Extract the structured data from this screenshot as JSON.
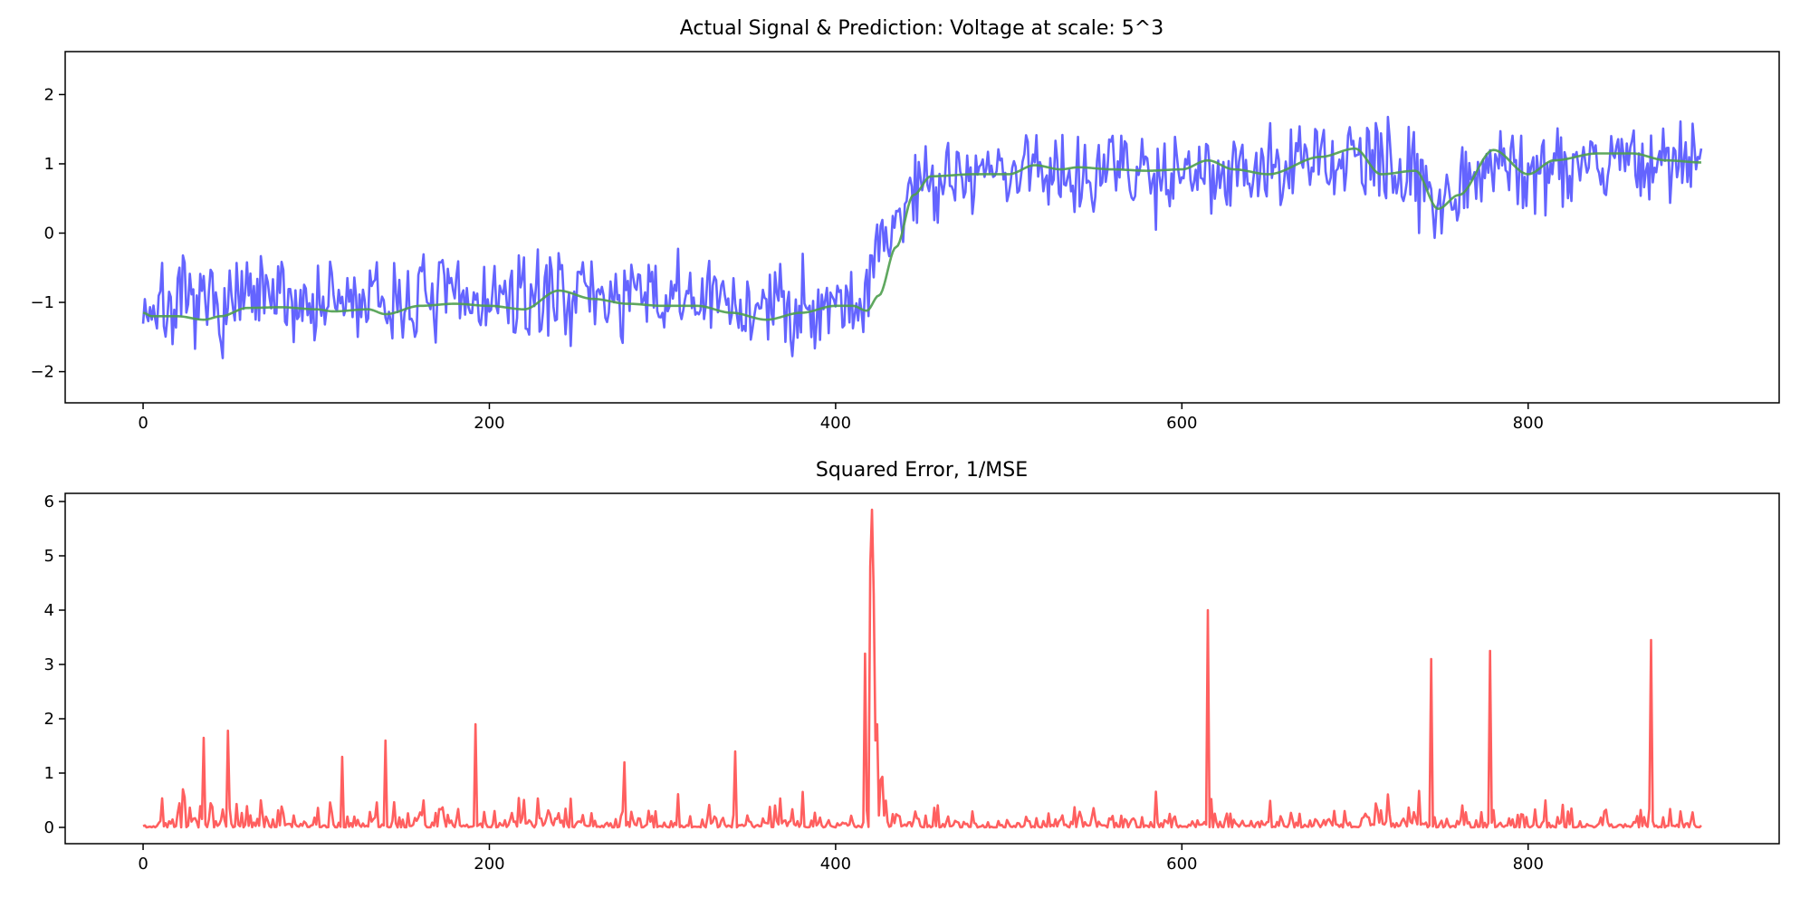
{
  "colors": {
    "signal": "#6464ff",
    "prediction": "#4e9e4e",
    "error": "#ff5f5f",
    "axes": "#000000",
    "background": "#ffffff"
  },
  "chart_data": [
    {
      "type": "line",
      "title": "Actual Signal & Prediction: Voltage at scale: 5^3",
      "xlabel": "",
      "ylabel": "",
      "xlim": [
        -45,
        945
      ],
      "ylim": [
        -2.45,
        2.62
      ],
      "grid": false,
      "x_ticks": [
        0,
        200,
        400,
        600,
        800
      ],
      "x_tick_labels": [
        "0",
        "200",
        "400",
        "600",
        "800"
      ],
      "y_ticks": [
        -2,
        -1,
        0,
        1,
        2
      ],
      "y_tick_labels": [
        "−2",
        "−1",
        "0",
        "1",
        "2"
      ],
      "x_start": 0,
      "x_step": 1,
      "series": [
        {
          "role": "actual signal",
          "color": "#6464ff",
          "mean_segments": [
            [
              0,
              420,
              -0.8
            ],
            [
              420,
              900,
              0.9
            ]
          ],
          "noise_amplitude": 0.55,
          "seed": 7,
          "approximate": true
        },
        {
          "role": "prediction",
          "color": "#4e9e4e",
          "anchors": [
            [
              0,
              -1.15
            ],
            [
              5,
              -1.2
            ],
            [
              20,
              -1.2
            ],
            [
              35,
              -1.25
            ],
            [
              45,
              -1.2
            ],
            [
              60,
              -1.08
            ],
            [
              80,
              -1.07
            ],
            [
              100,
              -1.1
            ],
            [
              110,
              -1.13
            ],
            [
              130,
              -1.1
            ],
            [
              140,
              -1.17
            ],
            [
              160,
              -1.05
            ],
            [
              180,
              -1.02
            ],
            [
              200,
              -1.05
            ],
            [
              220,
              -1.1
            ],
            [
              240,
              -0.83
            ],
            [
              260,
              -0.95
            ],
            [
              280,
              -1.02
            ],
            [
              300,
              -1.05
            ],
            [
              320,
              -1.05
            ],
            [
              340,
              -1.15
            ],
            [
              360,
              -1.25
            ],
            [
              380,
              -1.15
            ],
            [
              400,
              -1.05
            ],
            [
              410,
              -1.05
            ],
            [
              418,
              -1.12
            ],
            [
              425,
              -0.9
            ],
            [
              435,
              -0.2
            ],
            [
              445,
              0.55
            ],
            [
              455,
              0.82
            ],
            [
              480,
              0.85
            ],
            [
              500,
              0.85
            ],
            [
              515,
              0.98
            ],
            [
              530,
              0.92
            ],
            [
              540,
              0.95
            ],
            [
              560,
              0.92
            ],
            [
              580,
              0.9
            ],
            [
              600,
              0.92
            ],
            [
              615,
              1.05
            ],
            [
              630,
              0.92
            ],
            [
              650,
              0.85
            ],
            [
              680,
              1.1
            ],
            [
              700,
              1.22
            ],
            [
              715,
              0.85
            ],
            [
              735,
              0.9
            ],
            [
              748,
              0.35
            ],
            [
              760,
              0.55
            ],
            [
              780,
              1.2
            ],
            [
              800,
              0.85
            ],
            [
              815,
              1.05
            ],
            [
              840,
              1.15
            ],
            [
              860,
              1.15
            ],
            [
              880,
              1.05
            ],
            [
              900,
              1.02
            ]
          ],
          "approximate": true
        }
      ]
    },
    {
      "type": "line",
      "title": "Squared Error, 1/MSE",
      "xlabel": "",
      "ylabel": "",
      "xlim": [
        -45,
        945
      ],
      "ylim": [
        -0.3,
        6.15
      ],
      "grid": false,
      "x_ticks": [
        0,
        200,
        400,
        600,
        800
      ],
      "x_tick_labels": [
        "0",
        "200",
        "400",
        "600",
        "800"
      ],
      "y_ticks": [
        0,
        1,
        2,
        3,
        4,
        5,
        6
      ],
      "y_tick_labels": [
        "0",
        "1",
        "2",
        "3",
        "4",
        "5",
        "6"
      ],
      "series": [
        {
          "role": "squared error",
          "color": "#ff5f5f",
          "derived_from": "squared difference of the two series above",
          "peaks": [
            [
              35,
              1.65
            ],
            [
              49,
              1.78
            ],
            [
              115,
              1.3
            ],
            [
              140,
              1.6
            ],
            [
              192,
              1.9
            ],
            [
              278,
              1.2
            ],
            [
              342,
              1.4
            ],
            [
              417,
              3.2
            ],
            [
              421,
              5.85
            ],
            [
              615,
              4.0
            ],
            [
              744,
              3.1
            ],
            [
              778,
              3.25
            ],
            [
              871,
              3.45
            ]
          ],
          "approximate": true
        }
      ]
    }
  ]
}
